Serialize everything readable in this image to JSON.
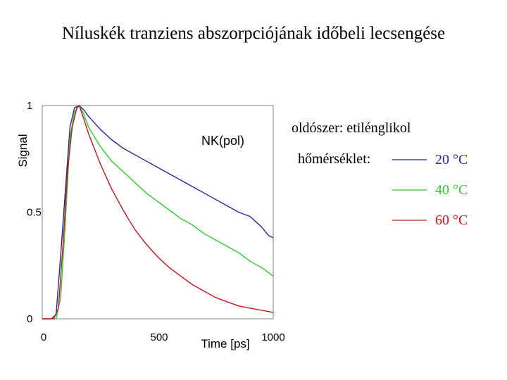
{
  "slide": {
    "title": "Níluskék tranziens abszorpciójának időbeli lecsengése"
  },
  "info": {
    "solvent": "oldószer: etilénglikol",
    "temperature_label": "hőmérséklet:"
  },
  "chart_data": {
    "type": "line",
    "title": "",
    "annotation": "NK(pol)",
    "xlabel": "Time [ps]",
    "ylabel": "Signal",
    "xlim": [
      0,
      1000
    ],
    "ylim": [
      0,
      1
    ],
    "xticks": [
      0,
      500,
      1000
    ],
    "yticks": [
      0,
      0.5,
      1
    ],
    "xtick_labels": [
      "0",
      "500",
      "1000"
    ],
    "ytick_labels": [
      "0",
      "0.5",
      "1"
    ],
    "grid": false,
    "legend_position": "right",
    "series": [
      {
        "name": "20 °C",
        "color": "#1f2a9e",
        "x": [
          0,
          40,
          60,
          80,
          100,
          120,
          140,
          160,
          180,
          200,
          250,
          300,
          350,
          400,
          450,
          500,
          550,
          600,
          650,
          700,
          750,
          800,
          850,
          900,
          950,
          980,
          1000
        ],
        "y": [
          0.0,
          0.0,
          0.02,
          0.3,
          0.6,
          0.9,
          0.99,
          1.0,
          0.98,
          0.95,
          0.89,
          0.84,
          0.8,
          0.77,
          0.74,
          0.71,
          0.68,
          0.65,
          0.62,
          0.59,
          0.56,
          0.53,
          0.5,
          0.48,
          0.43,
          0.39,
          0.38
        ]
      },
      {
        "name": "40 °C",
        "color": "#2bcf2b",
        "x": [
          0,
          60,
          80,
          100,
          120,
          140,
          160,
          180,
          200,
          250,
          300,
          350,
          400,
          450,
          500,
          550,
          600,
          650,
          700,
          750,
          800,
          850,
          900,
          950,
          1000
        ],
        "y": [
          0.0,
          0.0,
          0.1,
          0.45,
          0.85,
          0.97,
          1.0,
          0.96,
          0.9,
          0.81,
          0.74,
          0.69,
          0.64,
          0.59,
          0.55,
          0.51,
          0.47,
          0.44,
          0.4,
          0.37,
          0.34,
          0.31,
          0.27,
          0.24,
          0.2
        ]
      },
      {
        "name": "60 °C",
        "color": "#c8141e",
        "x": [
          0,
          50,
          70,
          90,
          110,
          130,
          150,
          160,
          170,
          200,
          250,
          300,
          350,
          400,
          450,
          500,
          550,
          600,
          650,
          700,
          750,
          800,
          850,
          900,
          950,
          1000
        ],
        "y": [
          0.0,
          0.0,
          0.05,
          0.35,
          0.7,
          0.9,
          0.99,
          1.0,
          0.97,
          0.87,
          0.73,
          0.61,
          0.51,
          0.42,
          0.35,
          0.29,
          0.24,
          0.2,
          0.16,
          0.13,
          0.1,
          0.08,
          0.06,
          0.05,
          0.04,
          0.03
        ]
      }
    ]
  }
}
